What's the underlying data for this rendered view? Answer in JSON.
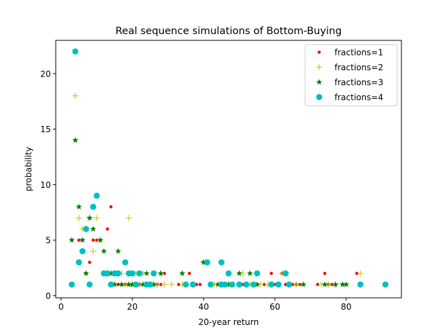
{
  "chart_data": {
    "type": "scatter",
    "title": "Real sequence simulations of Bottom-Buying",
    "xlabel": "20-year return",
    "ylabel": "probability",
    "xlim": [
      -1.5,
      95.5
    ],
    "ylim": [
      -0.2,
      23.0
    ],
    "xticks": [
      0,
      20,
      40,
      60,
      80
    ],
    "yticks": [
      0,
      5,
      10,
      15,
      20
    ],
    "grid": false,
    "legend_position": "top-right",
    "series": [
      {
        "name": "fractions=1",
        "marker": "dot",
        "color": "#ff0000",
        "points": [
          [
            3,
            5
          ],
          [
            4,
            14
          ],
          [
            5,
            5
          ],
          [
            6,
            5
          ],
          [
            7,
            2
          ],
          [
            8,
            3
          ],
          [
            9,
            5
          ],
          [
            10,
            5
          ],
          [
            11,
            5
          ],
          [
            12,
            2
          ],
          [
            13,
            6
          ],
          [
            14,
            8
          ],
          [
            15,
            2
          ],
          [
            16,
            1
          ],
          [
            17,
            1
          ],
          [
            18,
            1
          ],
          [
            19,
            1
          ],
          [
            20,
            1
          ],
          [
            21,
            1
          ],
          [
            22,
            1
          ],
          [
            24,
            1
          ],
          [
            25,
            1
          ],
          [
            26,
            1
          ],
          [
            27,
            1
          ],
          [
            28,
            1
          ],
          [
            29,
            2
          ],
          [
            33,
            1
          ],
          [
            36,
            2
          ],
          [
            38,
            1
          ],
          [
            39,
            1
          ],
          [
            40,
            3
          ],
          [
            45,
            3
          ],
          [
            46,
            1
          ],
          [
            48,
            1
          ],
          [
            51,
            1
          ],
          [
            52,
            1
          ],
          [
            55,
            1
          ],
          [
            57,
            1
          ],
          [
            59,
            2
          ],
          [
            60,
            1
          ],
          [
            62,
            2
          ],
          [
            63,
            1
          ],
          [
            65,
            1
          ],
          [
            66,
            1
          ],
          [
            67,
            1
          ],
          [
            72,
            1
          ],
          [
            74,
            2
          ],
          [
            75,
            1
          ],
          [
            76,
            1
          ],
          [
            79,
            1
          ],
          [
            83,
            2
          ]
        ]
      },
      {
        "name": "fractions=2",
        "marker": "plus",
        "color": "#bfbf00",
        "points": [
          [
            4,
            18
          ],
          [
            5,
            7
          ],
          [
            6,
            6
          ],
          [
            7,
            6
          ],
          [
            8,
            7
          ],
          [
            9,
            4
          ],
          [
            10,
            7
          ],
          [
            11,
            5
          ],
          [
            12,
            2
          ],
          [
            14,
            2
          ],
          [
            16,
            2
          ],
          [
            17,
            2
          ],
          [
            18,
            1
          ],
          [
            19,
            7
          ],
          [
            20,
            1
          ],
          [
            21,
            2
          ],
          [
            22,
            1
          ],
          [
            23,
            2
          ],
          [
            24,
            1
          ],
          [
            25,
            1
          ],
          [
            26,
            1
          ],
          [
            27,
            1
          ],
          [
            28,
            2
          ],
          [
            29,
            1
          ],
          [
            31,
            1
          ],
          [
            34,
            1
          ],
          [
            37,
            1
          ],
          [
            40,
            3
          ],
          [
            43,
            1
          ],
          [
            45,
            1
          ],
          [
            47,
            1
          ],
          [
            50,
            1
          ],
          [
            51,
            2
          ],
          [
            53,
            1
          ],
          [
            56,
            1
          ],
          [
            58,
            1
          ],
          [
            61,
            1
          ],
          [
            62,
            2
          ],
          [
            63,
            2
          ],
          [
            66,
            1
          ],
          [
            73,
            1
          ],
          [
            75,
            1
          ],
          [
            77,
            1
          ],
          [
            84,
            2
          ]
        ]
      },
      {
        "name": "fractions=3",
        "marker": "star",
        "color": "#007f00",
        "points": [
          [
            3,
            5
          ],
          [
            4,
            14
          ],
          [
            5,
            8
          ],
          [
            6,
            5
          ],
          [
            7,
            2
          ],
          [
            8,
            7
          ],
          [
            9,
            6
          ],
          [
            11,
            5
          ],
          [
            12,
            4
          ],
          [
            13,
            2
          ],
          [
            14,
            2
          ],
          [
            15,
            1
          ],
          [
            16,
            4
          ],
          [
            17,
            1
          ],
          [
            19,
            1
          ],
          [
            20,
            1
          ],
          [
            22,
            2
          ],
          [
            23,
            1
          ],
          [
            24,
            2
          ],
          [
            25,
            1
          ],
          [
            26,
            1
          ],
          [
            28,
            2
          ],
          [
            34,
            2
          ],
          [
            40,
            3
          ],
          [
            44,
            1
          ],
          [
            47,
            1
          ],
          [
            48,
            1
          ],
          [
            50,
            2
          ],
          [
            53,
            2
          ],
          [
            55,
            1
          ],
          [
            64,
            1
          ],
          [
            68,
            1
          ],
          [
            74,
            1
          ],
          [
            77,
            1
          ],
          [
            79,
            1
          ],
          [
            80,
            1
          ]
        ]
      },
      {
        "name": "fractions=4",
        "marker": "circle",
        "color": "#00bfbf",
        "points": [
          [
            3,
            1
          ],
          [
            4,
            22
          ],
          [
            5,
            3
          ],
          [
            6,
            4
          ],
          [
            7,
            6
          ],
          [
            8,
            1
          ],
          [
            9,
            8
          ],
          [
            10,
            9
          ],
          [
            12,
            2
          ],
          [
            13,
            2
          ],
          [
            14,
            1
          ],
          [
            15,
            2
          ],
          [
            16,
            2
          ],
          [
            18,
            3
          ],
          [
            19,
            2
          ],
          [
            20,
            2
          ],
          [
            21,
            1
          ],
          [
            22,
            2
          ],
          [
            24,
            1
          ],
          [
            25,
            1
          ],
          [
            26,
            2
          ],
          [
            35,
            1
          ],
          [
            37,
            1
          ],
          [
            41,
            3
          ],
          [
            42,
            1
          ],
          [
            45,
            1
          ],
          [
            45,
            3
          ],
          [
            46,
            1
          ],
          [
            47,
            2
          ],
          [
            48,
            1
          ],
          [
            50,
            1
          ],
          [
            52,
            1
          ],
          [
            54,
            1
          ],
          [
            55,
            2
          ],
          [
            59,
            1
          ],
          [
            61,
            1
          ],
          [
            63,
            2
          ],
          [
            64,
            1
          ],
          [
            84,
            1
          ],
          [
            91,
            1
          ]
        ]
      }
    ]
  }
}
